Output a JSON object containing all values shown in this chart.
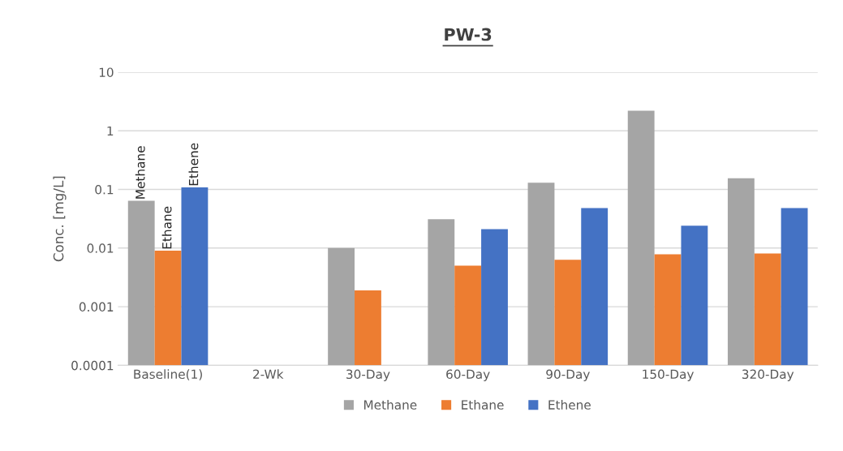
{
  "chart_data": {
    "type": "bar",
    "title": "PW-3",
    "ylabel": "Conc. [mg/L]",
    "categories": [
      "Baseline(1)",
      "2-Wk",
      "30-Day",
      "60-Day",
      "90-Day",
      "150-Day",
      "320-Day"
    ],
    "series": [
      {
        "name": "Methane",
        "color": "#a5a5a5",
        "values": [
          0.064,
          null,
          0.01,
          0.031,
          0.13,
          2.2,
          0.155
        ]
      },
      {
        "name": "Ethane",
        "color": "#ed7d31",
        "values": [
          0.009,
          null,
          0.0019,
          0.005,
          0.0063,
          0.0078,
          0.0081
        ]
      },
      {
        "name": "Ethene",
        "color": "#4472c4",
        "values": [
          0.108,
          null,
          null,
          0.021,
          0.048,
          0.024,
          0.048
        ]
      }
    ],
    "annotations": [
      "Methane",
      "Ethane",
      "Ethene"
    ],
    "log": true,
    "ylim": [
      0.0001,
      10
    ],
    "yticks": [
      {
        "value": 0.0001,
        "label": "0.0001"
      },
      {
        "value": 0.001,
        "label": "0.001"
      },
      {
        "value": 0.01,
        "label": "0.01"
      },
      {
        "value": 0.1,
        "label": "0.1"
      },
      1,
      10
    ],
    "grid": "y",
    "legend": "bottom"
  }
}
